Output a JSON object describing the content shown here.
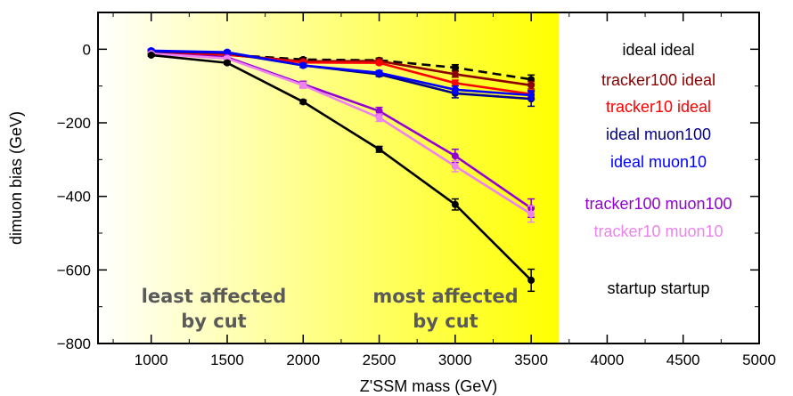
{
  "chart_data": {
    "type": "line",
    "xlabel": "Z'SSM mass (GeV)",
    "ylabel": "dimuon bias (GeV)",
    "xlim": [
      650,
      5000
    ],
    "ylim": [
      -800,
      100
    ],
    "xticks": [
      1000,
      1500,
      2000,
      2500,
      3000,
      3500,
      4000,
      4500,
      5000
    ],
    "yticks": [
      0,
      -200,
      -400,
      -600,
      -800
    ],
    "xtick_labels": [
      "1000",
      "1500",
      "2000",
      "2500",
      "3000",
      "3500",
      "4000",
      "4500",
      "5000"
    ],
    "ytick_labels": [
      "0",
      "−200",
      "−400",
      "−600",
      "−800"
    ],
    "grid": false,
    "legend_placement": "right",
    "background_gradient": {
      "from_x": 650,
      "to_x": 3680,
      "color_start": "#ffffff",
      "color_end": "#ffff00"
    },
    "x": [
      1000,
      1500,
      2000,
      2500,
      3000,
      3500
    ],
    "series": [
      {
        "name": "ideal ideal",
        "color": "#000000",
        "style": "dashed",
        "values": [
          -10,
          -15,
          -28,
          -30,
          -50,
          -82
        ],
        "errors": [
          4,
          4,
          5,
          6,
          8,
          12
        ]
      },
      {
        "name": "tracker100 ideal",
        "color": "#8b0000",
        "style": "solid",
        "values": [
          -10,
          -15,
          -33,
          -32,
          -68,
          -98
        ],
        "errors": [
          4,
          4,
          5,
          5,
          8,
          10
        ]
      },
      {
        "name": "tracker10 ideal",
        "color": "#ff0000",
        "style": "solid",
        "values": [
          -8,
          -14,
          -36,
          -37,
          -92,
          -122
        ],
        "errors": [
          4,
          4,
          5,
          5,
          8,
          10
        ]
      },
      {
        "name": "ideal muon100",
        "color": "#00008b",
        "style": "solid",
        "values": [
          -6,
          -10,
          -44,
          -68,
          -120,
          -135
        ],
        "errors": [
          4,
          4,
          5,
          6,
          12,
          20
        ]
      },
      {
        "name": "ideal muon10",
        "color": "#0000ff",
        "style": "solid",
        "values": [
          -4,
          -8,
          -44,
          -64,
          -110,
          -125
        ],
        "errors": [
          4,
          4,
          5,
          6,
          10,
          12
        ]
      },
      {
        "name": "tracker100 muon100",
        "color": "#9400d3",
        "style": "solid",
        "values": [
          -12,
          -22,
          -95,
          -168,
          -290,
          -432
        ],
        "errors": [
          4,
          5,
          8,
          10,
          18,
          25
        ]
      },
      {
        "name": "tracker10 muon10",
        "color": "#ee82ee",
        "style": "solid",
        "values": [
          -12,
          -25,
          -98,
          -186,
          -318,
          -448
        ],
        "errors": [
          4,
          5,
          8,
          10,
          15,
          22
        ]
      },
      {
        "name": "startup startup",
        "color": "#000000",
        "style": "solid",
        "values": [
          -16,
          -37,
          -143,
          -272,
          -422,
          -628
        ],
        "errors": [
          3,
          4,
          5,
          8,
          15,
          30
        ]
      }
    ],
    "annotations": [
      {
        "text": [
          "least affected",
          "by cut"
        ]
      },
      {
        "text": [
          "most affected",
          "by cut"
        ]
      }
    ]
  }
}
